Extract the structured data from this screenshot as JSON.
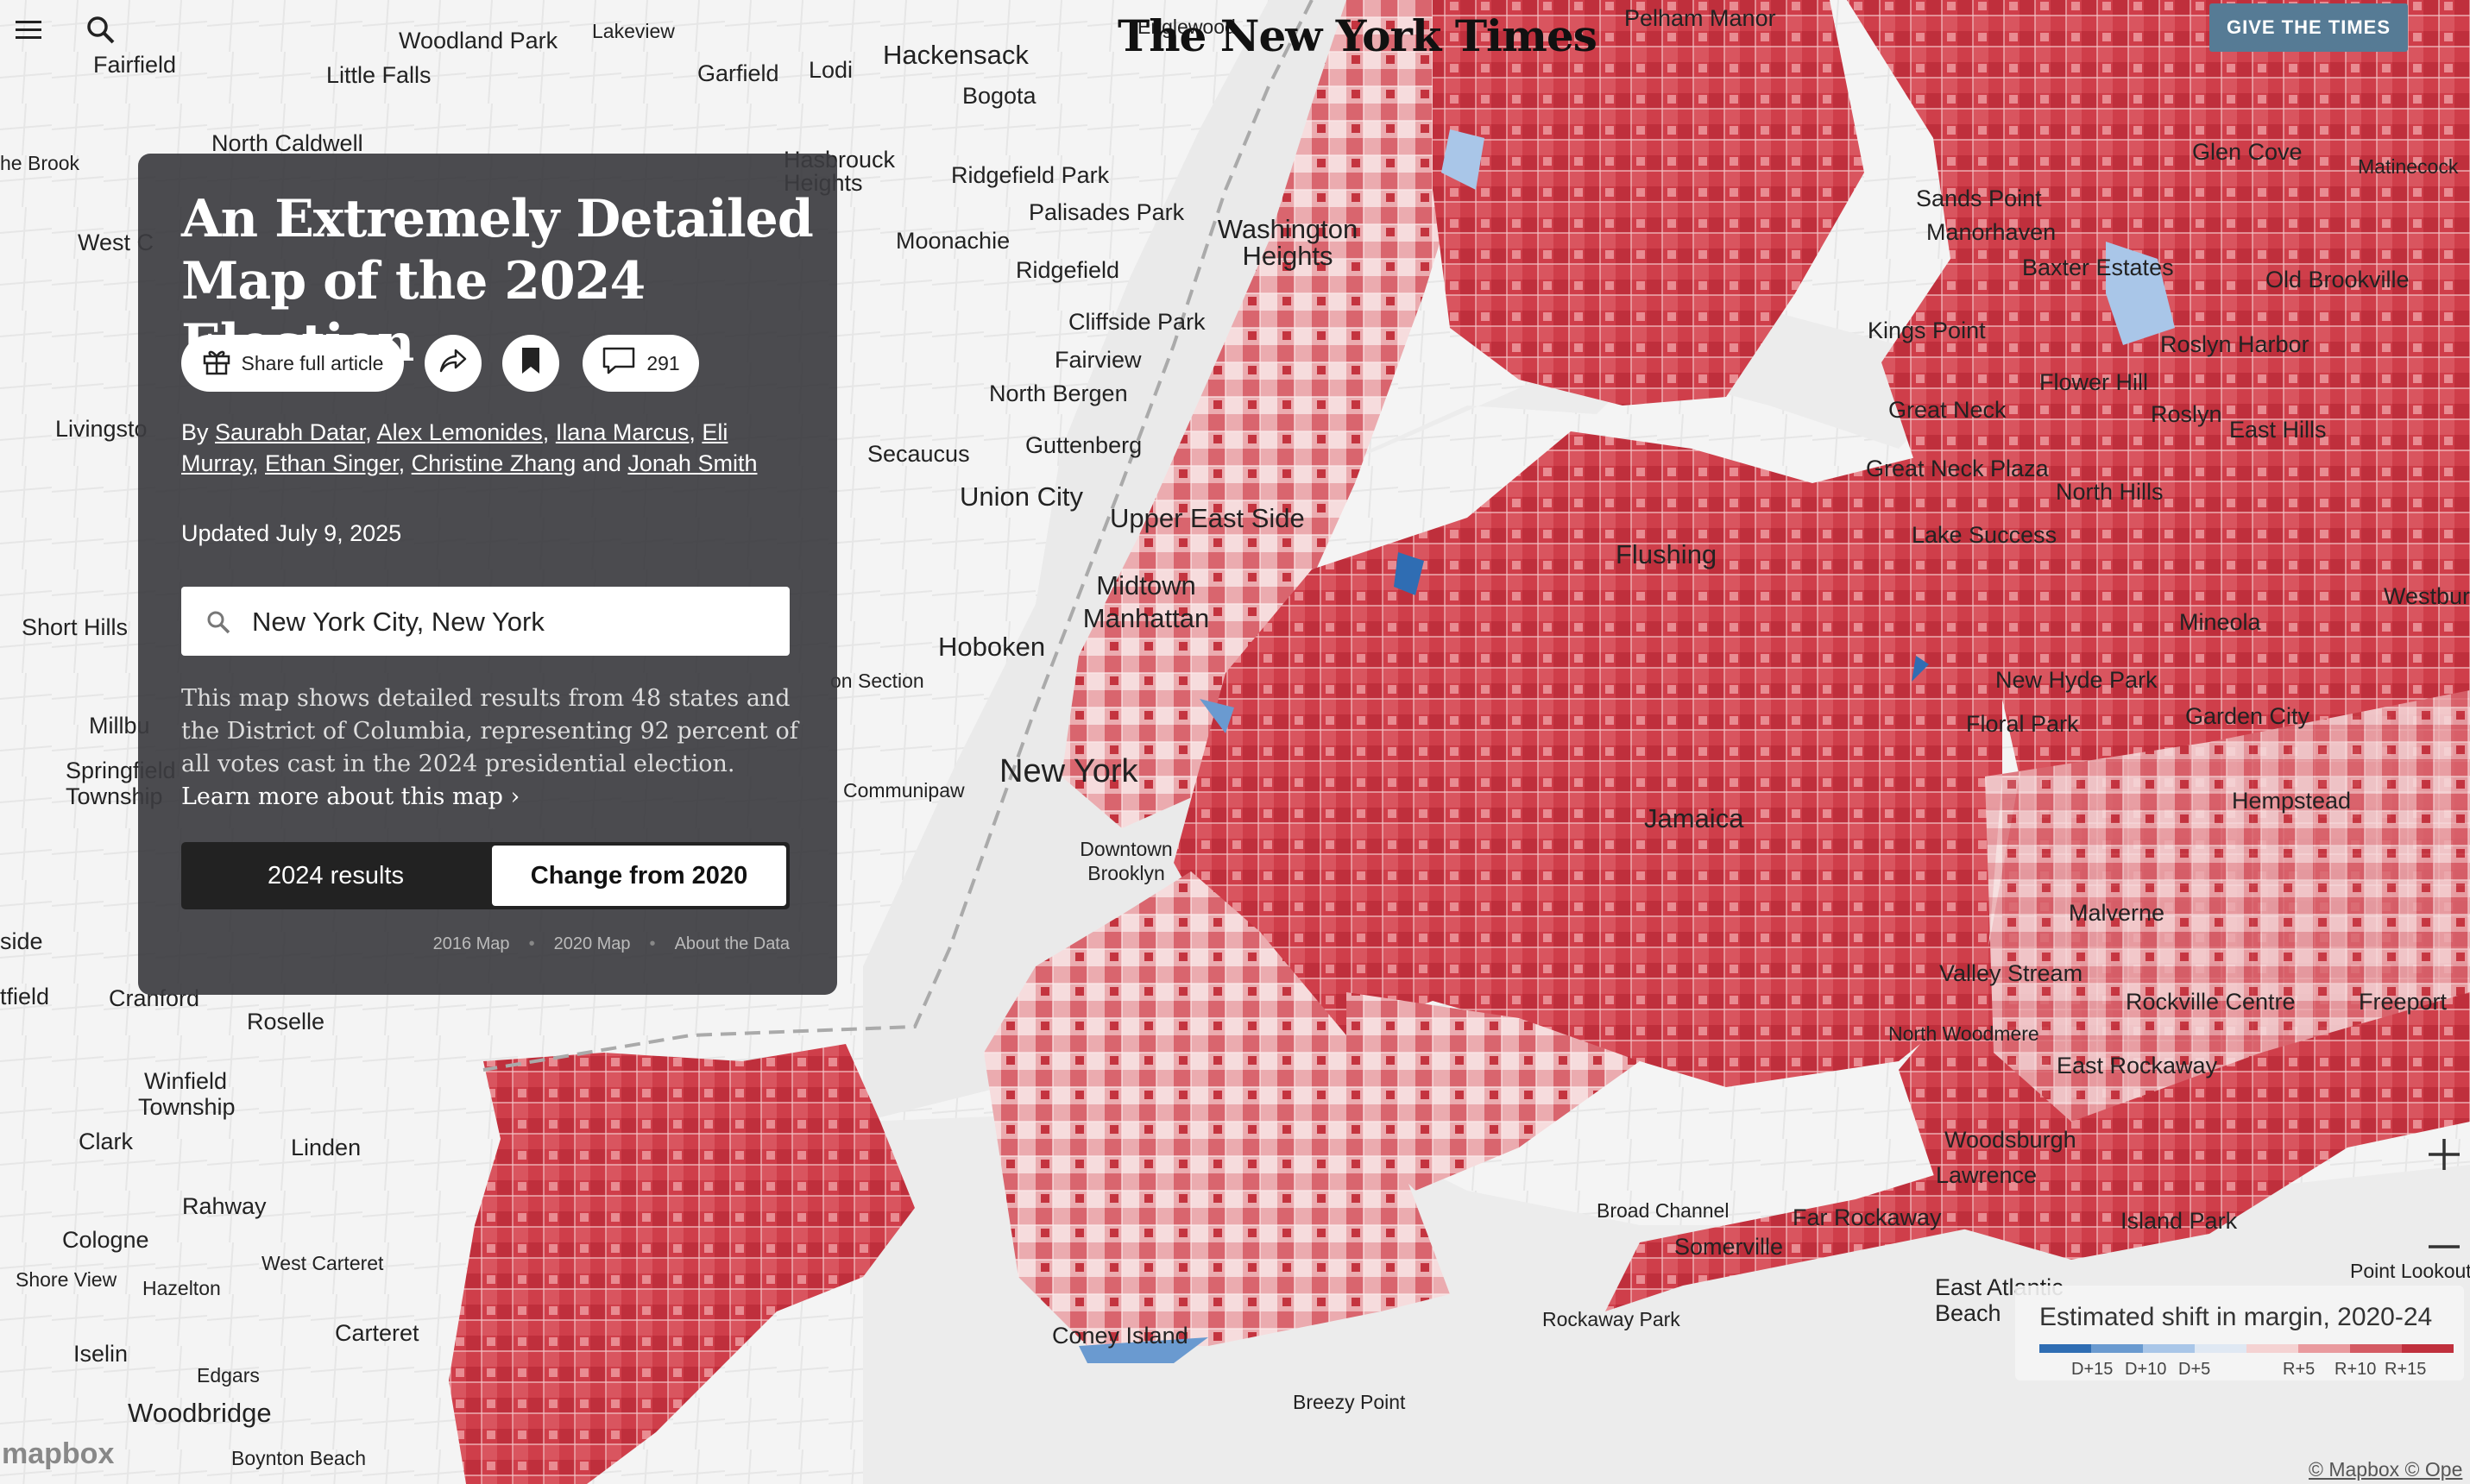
{
  "header": {
    "logo": "The New York Times",
    "give_button": "GIVE THE TIMES"
  },
  "article": {
    "title": "An Extremely Detailed Map of the 2024 Election",
    "share_label": "Share full article",
    "comment_count": "291",
    "byline": {
      "by": "By",
      "authors": [
        "Saurabh Datar",
        "Alex Lemonides",
        "Ilana Marcus",
        "Eli Murray",
        "Ethan Singer",
        "Christine Zhang",
        "Jonah Smith"
      ],
      "and": "and"
    },
    "updated": "Updated July 9, 2025",
    "search_value": "New York City, New York",
    "description": "This map shows detailed results from 48 states and the District of Columbia, representing 92 percent of all votes cast in the 2024 presidential election.",
    "learn_more": "Learn more about this map ›",
    "toggle": {
      "option_a": "2024 results",
      "option_b": "Change from 2020",
      "selected": "Change from 2020"
    },
    "links": [
      "2016 Map",
      "2020 Map",
      "About the Data"
    ]
  },
  "legend": {
    "title": "Estimated shift in margin, 2020-24",
    "labels": [
      "D+15",
      "D+10",
      "D+5",
      "R+5",
      "R+10",
      "R+15"
    ],
    "colors": [
      "#2f6db3",
      "#6a9ad0",
      "#a9c6e8",
      "#dfe8f3",
      "#f4d2d2",
      "#e99a9e",
      "#d45a63",
      "#c0303d"
    ]
  },
  "map": {
    "places": [
      {
        "name": "Fairfield"
      },
      {
        "name": "Woodland Park"
      },
      {
        "name": "Lakeview"
      },
      {
        "name": "Little Falls"
      },
      {
        "name": "Garfield"
      },
      {
        "name": "Lodi"
      },
      {
        "name": "Hackensack"
      },
      {
        "name": "Bogota"
      },
      {
        "name": "Englewood"
      },
      {
        "name": "Pelham Manor"
      },
      {
        "name": "he Brook"
      },
      {
        "name": "North Caldwell"
      },
      {
        "name": "Hasbrouck Heights"
      },
      {
        "name": "Ridgefield Park"
      },
      {
        "name": "Palisades Park"
      },
      {
        "name": "Moonachie"
      },
      {
        "name": "Washington Heights"
      },
      {
        "name": "Ridgefield"
      },
      {
        "name": "Cliffside Park"
      },
      {
        "name": "Fairview"
      },
      {
        "name": "North Bergen"
      },
      {
        "name": "Guttenberg"
      },
      {
        "name": "Secaucus"
      },
      {
        "name": "Union City"
      },
      {
        "name": "Upper East Side"
      },
      {
        "name": "Midtown Manhattan"
      },
      {
        "name": "Hoboken"
      },
      {
        "name": "Flushing"
      },
      {
        "name": "Jamaica"
      },
      {
        "name": "New York"
      },
      {
        "name": "Downtown Brooklyn"
      },
      {
        "name": "Communipaw"
      },
      {
        "name": "Coney Island"
      },
      {
        "name": "Breezy Point"
      },
      {
        "name": "Rockaway Park"
      },
      {
        "name": "Broad Channel"
      },
      {
        "name": "Somerville"
      },
      {
        "name": "Far Rockaway"
      },
      {
        "name": "Glen Cove"
      },
      {
        "name": "Matinecock"
      },
      {
        "name": "Sands Point"
      },
      {
        "name": "Manorhaven"
      },
      {
        "name": "Baxter Estates"
      },
      {
        "name": "Old Brookville"
      },
      {
        "name": "Kings Point"
      },
      {
        "name": "Roslyn Harbor"
      },
      {
        "name": "Flower Hill"
      },
      {
        "name": "Great Neck"
      },
      {
        "name": "Roslyn"
      },
      {
        "name": "East Hills"
      },
      {
        "name": "Great Neck Plaza"
      },
      {
        "name": "North Hills"
      },
      {
        "name": "Lake Success"
      },
      {
        "name": "Mineola"
      },
      {
        "name": "Westbury"
      },
      {
        "name": "New Hyde Park"
      },
      {
        "name": "Floral Park"
      },
      {
        "name": "Garden City"
      },
      {
        "name": "Hempstead"
      },
      {
        "name": "Malverne"
      },
      {
        "name": "Valley Stream"
      },
      {
        "name": "Rockville Centre"
      },
      {
        "name": "Freeport"
      },
      {
        "name": "North Woodmere"
      },
      {
        "name": "East Rockaway"
      },
      {
        "name": "Woodsburgh"
      },
      {
        "name": "Lawrence"
      },
      {
        "name": "Island Park"
      },
      {
        "name": "Point Lookout"
      },
      {
        "name": "East Atlantic Beach"
      },
      {
        "name": "West C"
      },
      {
        "name": "Livingsto"
      },
      {
        "name": "Short Hills"
      },
      {
        "name": "Millbu"
      },
      {
        "name": "Springfield Township"
      },
      {
        "name": "Roselle"
      },
      {
        "name": "Cranford"
      },
      {
        "name": "Winfield Township"
      },
      {
        "name": "Clark"
      },
      {
        "name": "Linden"
      },
      {
        "name": "Rahway"
      },
      {
        "name": "Cologne"
      },
      {
        "name": "West Carteret"
      },
      {
        "name": "Shore View"
      },
      {
        "name": "Hazelton"
      },
      {
        "name": "Carteret"
      },
      {
        "name": "Iselin"
      },
      {
        "name": "Edgars"
      },
      {
        "name": "Woodbridge"
      },
      {
        "name": "Boynton Beach"
      },
      {
        "name": "side"
      },
      {
        "name": "tfield"
      },
      {
        "name": "on Section"
      }
    ]
  },
  "attribution": {
    "mapbox_logo": "mapbox",
    "text": "© Mapbox © Ope"
  }
}
